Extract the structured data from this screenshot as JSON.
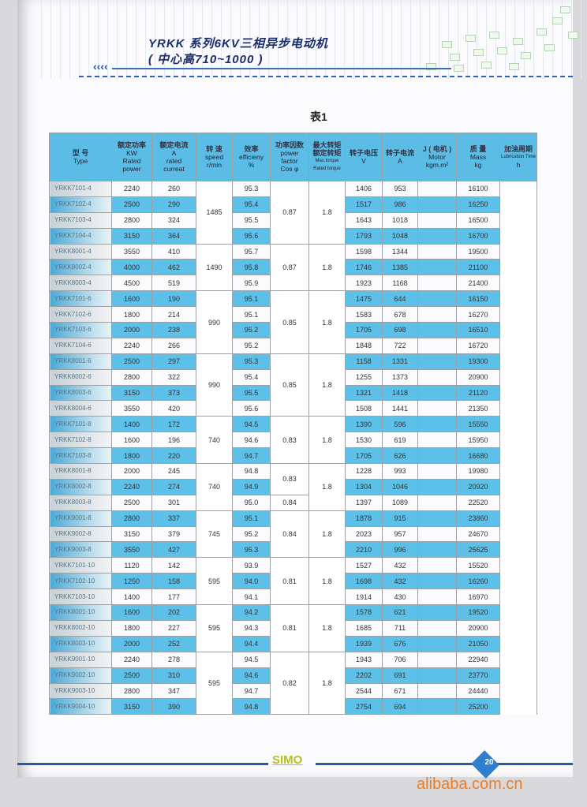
{
  "header": {
    "title_line1": "YRKK 系列6KV三相异步电动机",
    "title_line2": "( 中心高710~1000 )",
    "arrows": "‹‹‹‹"
  },
  "caption": "表1",
  "columns": [
    [
      "型 号",
      "Type"
    ],
    [
      "额定功率",
      "KW",
      "Rated",
      "power"
    ],
    [
      "额定电流",
      "A",
      "rated",
      "curreat"
    ],
    [
      "转 速",
      "speed",
      "r/min"
    ],
    [
      "效率",
      "efficieny",
      "%"
    ],
    [
      "功率因数",
      "power",
      "factor",
      "Cos φ"
    ],
    [
      "最大转矩",
      "额定转矩",
      "Max.torque",
      "Rated torque"
    ],
    [
      "转子电压",
      "V"
    ],
    [
      "转子电流",
      "A"
    ],
    [
      "J ( 电机 )",
      "Motor",
      "kgm.m²"
    ],
    [
      "质 量",
      "Mass",
      "kg"
    ],
    [
      "加油周期",
      "Lubrication Time",
      "h"
    ]
  ],
  "rows": [
    [
      "YRKK7101-4",
      "2240",
      "260",
      "95.3",
      "1406",
      "953",
      "16100"
    ],
    [
      "YRKK7102-4",
      "2500",
      "290",
      "95.4",
      "1517",
      "986",
      "16250"
    ],
    [
      "YRKK7103-4",
      "2800",
      "324",
      "95.5",
      "1643",
      "1018",
      "16500"
    ],
    [
      "YRKK7104-4",
      "3150",
      "364",
      "95.6",
      "1793",
      "1048",
      "16700"
    ],
    [
      "YRKK8001-4",
      "3550",
      "410",
      "95.7",
      "1598",
      "1344",
      "19500"
    ],
    [
      "YRKK8002-4",
      "4000",
      "462",
      "95.8",
      "1746",
      "1385",
      "21100"
    ],
    [
      "YRKK8003-4",
      "4500",
      "519",
      "95.9",
      "1923",
      "1168",
      "21400"
    ],
    [
      "YRKK7101-6",
      "1600",
      "190",
      "95.1",
      "1475",
      "644",
      "16150"
    ],
    [
      "YRKK7102-6",
      "1800",
      "214",
      "95.1",
      "1583",
      "678",
      "16270"
    ],
    [
      "YRKK7103-6",
      "2000",
      "238",
      "95.2",
      "1705",
      "698",
      "16510"
    ],
    [
      "YRKK7104-6",
      "2240",
      "266",
      "95.2",
      "1848",
      "722",
      "16720"
    ],
    [
      "YRKK8001-6",
      "2500",
      "297",
      "95.3",
      "1158",
      "1331",
      "19300"
    ],
    [
      "YRKK8002-6",
      "2800",
      "322",
      "95.4",
      "1255",
      "1373",
      "20900"
    ],
    [
      "YRKK8003-6",
      "3150",
      "373",
      "95.5",
      "1321",
      "1418",
      "21120"
    ],
    [
      "YRKK8004-6",
      "3550",
      "420",
      "95.6",
      "1508",
      "1441",
      "21350"
    ],
    [
      "YRKK7101-8",
      "1400",
      "172",
      "94.5",
      "1390",
      "596",
      "15550"
    ],
    [
      "YRKK7102-8",
      "1600",
      "196",
      "94.6",
      "1530",
      "619",
      "15950"
    ],
    [
      "YRKK7103-8",
      "1800",
      "220",
      "94.7",
      "1705",
      "626",
      "16680"
    ],
    [
      "YRKK8001-8",
      "2000",
      "245",
      "94.8",
      "1228",
      "993",
      "19980"
    ],
    [
      "YRKK8002-8",
      "2240",
      "274",
      "94.9",
      "1304",
      "1046",
      "20920"
    ],
    [
      "YRKK8003-8",
      "2500",
      "301",
      "95.0",
      "1397",
      "1089",
      "22520"
    ],
    [
      "YRKK9001-8",
      "2800",
      "337",
      "95.1",
      "1878",
      "915",
      "23860"
    ],
    [
      "YRKK9002-8",
      "3150",
      "379",
      "95.2",
      "2023",
      "957",
      "24670"
    ],
    [
      "YRKK9003-8",
      "3550",
      "427",
      "95.3",
      "2210",
      "996",
      "25625"
    ],
    [
      "YRKK7101-10",
      "1120",
      "142",
      "93.9",
      "1527",
      "432",
      "15520"
    ],
    [
      "YRKK7102-10",
      "1250",
      "158",
      "94.0",
      "1698",
      "432",
      "16260"
    ],
    [
      "YRKK7103-10",
      "1400",
      "177",
      "94.1",
      "1914",
      "430",
      "16970"
    ],
    [
      "YRKK8001-10",
      "1600",
      "202",
      "94.2",
      "1578",
      "621",
      "19520"
    ],
    [
      "YRKK8002-10",
      "1800",
      "227",
      "94.3",
      "1685",
      "711",
      "20900"
    ],
    [
      "YRKK8003-10",
      "2000",
      "252",
      "94.4",
      "1939",
      "676",
      "21050"
    ],
    [
      "YRKK9001-10",
      "2240",
      "278",
      "94.5",
      "1943",
      "706",
      "22940"
    ],
    [
      "YRKK9002-10",
      "2500",
      "310",
      "94.6",
      "2202",
      "691",
      "23770"
    ],
    [
      "YRKK9003-10",
      "2800",
      "347",
      "94.7",
      "2544",
      "671",
      "24440"
    ],
    [
      "YRKK9004-10",
      "3150",
      "390",
      "94.8",
      "2754",
      "694",
      "25200"
    ]
  ],
  "speed_groups": [
    [
      4,
      "1485"
    ],
    [
      3,
      "1490"
    ],
    [
      4,
      "990"
    ],
    [
      4,
      "990"
    ],
    [
      3,
      "740"
    ],
    [
      3,
      "740"
    ],
    [
      3,
      "745"
    ],
    [
      3,
      "595"
    ],
    [
      3,
      "595"
    ],
    [
      4,
      "595"
    ]
  ],
  "pf_groups": [
    [
      4,
      "0.87"
    ],
    [
      3,
      "0.87"
    ],
    [
      4,
      "0.85"
    ],
    [
      4,
      "0.85"
    ],
    [
      3,
      "0.83"
    ],
    [
      2,
      "0.83"
    ],
    [
      1,
      "0.84"
    ],
    [
      3,
      "0.84"
    ],
    [
      3,
      "0.81"
    ],
    [
      3,
      "0.81"
    ],
    [
      4,
      "0.82"
    ]
  ],
  "torque_groups": [
    [
      4,
      "1.8"
    ],
    [
      3,
      "1.8"
    ],
    [
      4,
      "1.8"
    ],
    [
      4,
      "1.8"
    ],
    [
      3,
      "1.8"
    ],
    [
      3,
      "1.8"
    ],
    [
      3,
      "1.8"
    ],
    [
      3,
      "1.8"
    ],
    [
      3,
      "1.8"
    ],
    [
      4,
      "1.8"
    ]
  ],
  "footer": {
    "brand": "SIMO",
    "page_number": "20",
    "watermark": "alibaba.com.cn"
  },
  "colors": {
    "row_blue": "#5cc0e8",
    "header_blue": "#5bbde6",
    "title": "#1d2c6b",
    "watermark": "#f07b22"
  }
}
